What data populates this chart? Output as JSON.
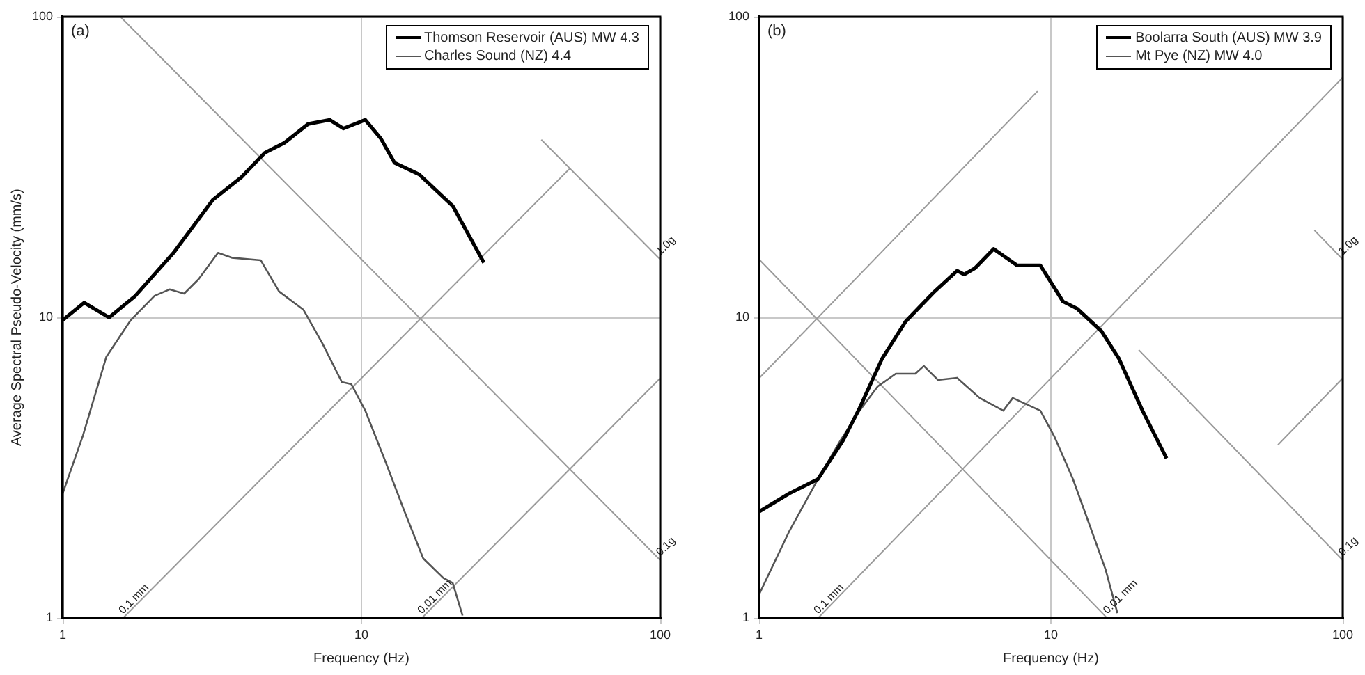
{
  "chart_data": [
    {
      "type": "line",
      "xlabel": "Frequency (Hz)",
      "ylabel": "Average Spectral Pseudo-Velocity (mm/s)",
      "log": "xy",
      "xlim": [
        1,
        100
      ],
      "ylim": [
        1,
        100
      ],
      "xticks": [
        1,
        10,
        100
      ],
      "yticks": [
        1,
        10,
        100
      ],
      "grid": true,
      "legend": "top right",
      "marker": "none",
      "line_style": "solid",
      "annotations": [
        "(a)",
        {
          "text": "0.1 mm",
          "x": 1.59,
          "y": 1
        },
        {
          "text": "0.01 mm",
          "x": 15.9,
          "y": 1
        },
        {
          "text": "1.0g",
          "x": 100,
          "y": 15.6
        },
        {
          "text": "0.1g",
          "x": 100,
          "y": 1.56
        }
      ],
      "series": [
        {
          "name": "Thomson Reservoir (AUS) MW 4.3",
          "color": "#000000",
          "x": [
            1,
            1.18,
            1.43,
            1.75,
            2.35,
            3.18,
            3.97,
            4.75,
            5.53,
            6.63,
            7.83,
            8.7,
            10.3,
            11.6,
            12.9,
            15.6,
            20.2,
            25.7
          ],
          "values": [
            9.8,
            11.2,
            10,
            11.8,
            16.4,
            24.6,
            29.3,
            35.3,
            38.1,
            44,
            45.4,
            42.5,
            45.4,
            39.4,
            32.7,
            29.9,
            23.5,
            15.2
          ]
        },
        {
          "name": "Charles Sound (NZ) 4.4",
          "color": "#555555",
          "x": [
            1,
            1.17,
            1.4,
            1.69,
            2.03,
            2.28,
            2.55,
            2.85,
            3.31,
            3.68,
            4.6,
            5.3,
            6.4,
            7.4,
            8.6,
            9.25,
            10.3,
            12.1,
            13.9,
            16.1,
            18.8,
            20.2,
            21.8
          ],
          "values": [
            2.6,
            4.06,
            7.4,
            9.8,
            11.8,
            12.4,
            12,
            13.4,
            16.4,
            15.8,
            15.5,
            12.2,
            10.6,
            8.2,
            6.1,
            6,
            4.9,
            3.27,
            2.28,
            1.58,
            1.36,
            1.31,
            1.02
          ]
        },
        {
          "color": "#9a9a9a",
          "x": [
            1.59,
            50
          ],
          "values": [
            1,
            31.4
          ]
        },
        {
          "color": "#9a9a9a",
          "x": [
            15.9,
            100
          ],
          "values": [
            1,
            6.28
          ]
        },
        {
          "color": "#9a9a9a",
          "x": [
            1.56,
            100
          ],
          "values": [
            100,
            1.56
          ]
        },
        {
          "color": "#9a9a9a",
          "x": [
            40,
            100
          ],
          "values": [
            39,
            15.6
          ]
        }
      ]
    },
    {
      "type": "line",
      "xlabel": "Frequency (Hz)",
      "log": "xy",
      "xlim": [
        1,
        100
      ],
      "ylim": [
        1,
        100
      ],
      "xticks": [
        1,
        10,
        100
      ],
      "yticks": [
        1,
        10,
        100
      ],
      "grid": true,
      "legend": "top right",
      "marker": "none",
      "line_style": "solid",
      "annotations": [
        "(b)",
        {
          "text": "0.1 mm",
          "x": 1.59,
          "y": 1
        },
        {
          "text": "0.01 mm",
          "x": 15.6,
          "y": 1
        },
        {
          "text": "1.0g",
          "x": 100,
          "y": 15.6
        },
        {
          "text": "0.1g",
          "x": 100,
          "y": 1.56
        }
      ],
      "series": [
        {
          "name": "Boolarra South (AUS) MW 3.9",
          "color": "#000000",
          "x": [
            1,
            1.27,
            1.59,
            1.94,
            2.21,
            2.64,
            3.18,
            3.96,
            4.77,
            5.04,
            5.5,
            6.36,
            7.66,
            9.2,
            11,
            12.3,
            14.9,
            17.1,
            20.6,
            24.9
          ],
          "values": [
            2.26,
            2.6,
            2.9,
            3.9,
            5,
            7.3,
            9.7,
            12.1,
            14.3,
            13.9,
            14.6,
            16.9,
            14.9,
            14.9,
            11.3,
            10.7,
            9,
            7.3,
            4.9,
            3.4
          ]
        },
        {
          "name": "Mt Pye (NZ) MW 4.0",
          "color": "#555555",
          "x": [
            1,
            1.27,
            1.59,
            1.9,
            2.21,
            2.55,
            2.94,
            3.43,
            3.67,
            4.1,
            4.77,
            5.7,
            6.87,
            7.4,
            9.2,
            10.3,
            11.9,
            13.8,
            15.4,
            16.9
          ],
          "values": [
            1.2,
            1.95,
            2.9,
            3.9,
            4.9,
            5.9,
            6.5,
            6.5,
            6.9,
            6.2,
            6.3,
            5.4,
            4.9,
            5.4,
            4.9,
            4,
            2.9,
            1.95,
            1.45,
            1.04
          ]
        },
        {
          "color": "#9a9a9a",
          "x": [
            1,
            9
          ],
          "values": [
            6.28,
            56.5
          ]
        },
        {
          "color": "#9a9a9a",
          "x": [
            1.59,
            100
          ],
          "values": [
            1,
            62.8
          ]
        },
        {
          "color": "#9a9a9a",
          "x": [
            60,
            100
          ],
          "values": [
            3.77,
            6.28
          ]
        },
        {
          "color": "#9a9a9a",
          "x": [
            1,
            15.6
          ],
          "values": [
            15.6,
            1
          ]
        },
        {
          "color": "#9a9a9a",
          "x": [
            20,
            100
          ],
          "values": [
            7.8,
            1.56
          ]
        },
        {
          "color": "#9a9a9a",
          "x": [
            80,
            100
          ],
          "values": [
            19.5,
            15.6
          ]
        }
      ]
    }
  ]
}
